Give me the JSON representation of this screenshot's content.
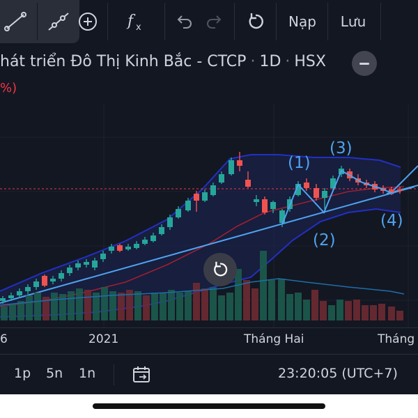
{
  "toolbar": {
    "tools": [
      {
        "icon": "trend-line-icon"
      },
      {
        "icon": "ray-line-icon"
      },
      {
        "icon": "add-circle-icon"
      },
      {
        "icon": "fx-indicator-icon"
      },
      {
        "icon": "undo-icon"
      },
      {
        "icon": "redo-icon"
      },
      {
        "icon": "refresh-icon"
      }
    ],
    "load_label": "Nạp",
    "save_label": "Lưu"
  },
  "header": {
    "title_name": "hát triển Đô Thị Kinh Bắc - CTCP",
    "interval": "1D",
    "exchange": "HSX",
    "change_fragment": "%)"
  },
  "chart_data": {
    "type": "candlestick",
    "title": "",
    "x_ticks": [
      "6",
      "2021",
      "Tháng Hai",
      "Tháng"
    ],
    "annotations": [
      "(1)",
      "(2)",
      "(3)",
      "(4)"
    ],
    "price_line": "dashed",
    "colors": {
      "up": "#26a69a",
      "down": "#ef5350",
      "band": "#1f2ea8",
      "trend": "#4fa3f0",
      "ma": "#b2223a"
    }
  },
  "footer": {
    "intervals": [
      "1p",
      "5n",
      "1n"
    ],
    "clock": "23:20:05 (UTC+7)"
  },
  "colors": {
    "background": "#131722",
    "text": "#d1d4dc",
    "accent": "#f23645"
  }
}
